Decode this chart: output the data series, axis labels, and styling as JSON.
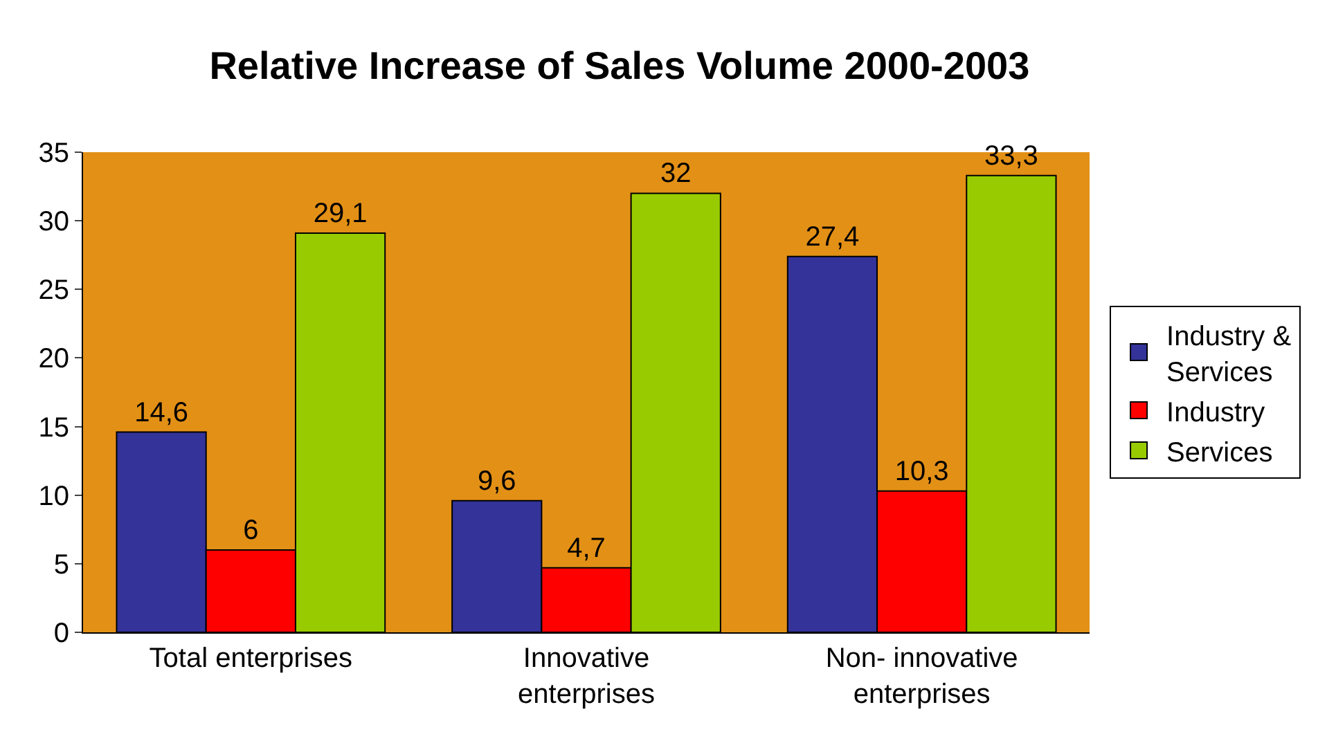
{
  "chart_data": {
    "type": "bar",
    "title": "Relative Increase of Sales Volume 2000-2003",
    "categories": [
      "Total enterprises",
      "Innovative enterprises",
      "Non- innovative enterprises"
    ],
    "series": [
      {
        "name": "Industry & Services",
        "color": "#333399",
        "values": [
          14.6,
          9.6,
          27.4
        ],
        "value_labels": [
          "14,6",
          "9,6",
          "27,4"
        ]
      },
      {
        "name": "Industry",
        "color": "#ff0000",
        "values": [
          6,
          4.7,
          10.3
        ],
        "value_labels": [
          "6",
          "4,7",
          "10,3"
        ]
      },
      {
        "name": "Services",
        "color": "#99cc00",
        "values": [
          29.1,
          32,
          33.3
        ],
        "value_labels": [
          "29,1",
          "32",
          "33,3"
        ]
      }
    ],
    "ylim": [
      0,
      35
    ],
    "yticks": [
      0,
      5,
      10,
      15,
      20,
      25,
      30,
      35
    ],
    "grid": false,
    "legend": "right"
  }
}
